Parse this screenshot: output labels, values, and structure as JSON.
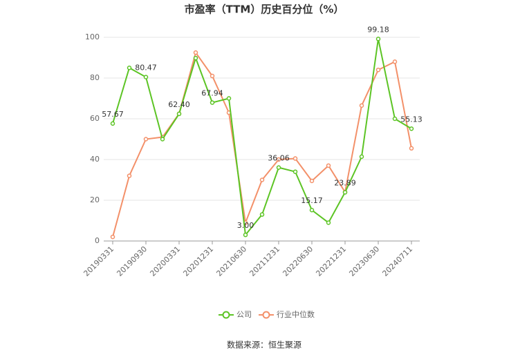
{
  "chart_data": {
    "type": "line",
    "title": "市盈率（TTM）历史百分位（%）",
    "categories": [
      "20190331",
      null,
      "20190930",
      null,
      "20200331",
      null,
      "20201231",
      null,
      "20210630",
      null,
      "20211231",
      null,
      "20220630",
      null,
      "20221231",
      null,
      "20230630",
      null,
      "20240711"
    ],
    "series": [
      {
        "name": "公司",
        "color": "#5cc424",
        "values": [
          57.67,
          85,
          80.47,
          50,
          62.4,
          89.8,
          67.94,
          70,
          3,
          13,
          36.06,
          34,
          15.17,
          9,
          23.89,
          41.4,
          99.18,
          60,
          55.13
        ],
        "value_labels": [
          "57.67",
          null,
          "80.47",
          null,
          "62.40",
          null,
          "67.94",
          null,
          "3.00",
          null,
          "36.06",
          null,
          "15.17",
          null,
          "23.89",
          null,
          "99.18",
          null,
          "55.13"
        ]
      },
      {
        "name": "行业中位数",
        "color": "#f39069",
        "values": [
          2,
          32,
          50,
          51,
          62.5,
          92.5,
          81,
          63,
          9,
          30,
          40,
          40.5,
          29.5,
          37,
          24,
          66.5,
          84,
          88,
          45.5
        ]
      }
    ],
    "ylim": [
      0,
      100
    ],
    "yticks": [
      0,
      20,
      40,
      60,
      80,
      100
    ],
    "grid": true,
    "source": "数据来源：恒生聚源"
  }
}
